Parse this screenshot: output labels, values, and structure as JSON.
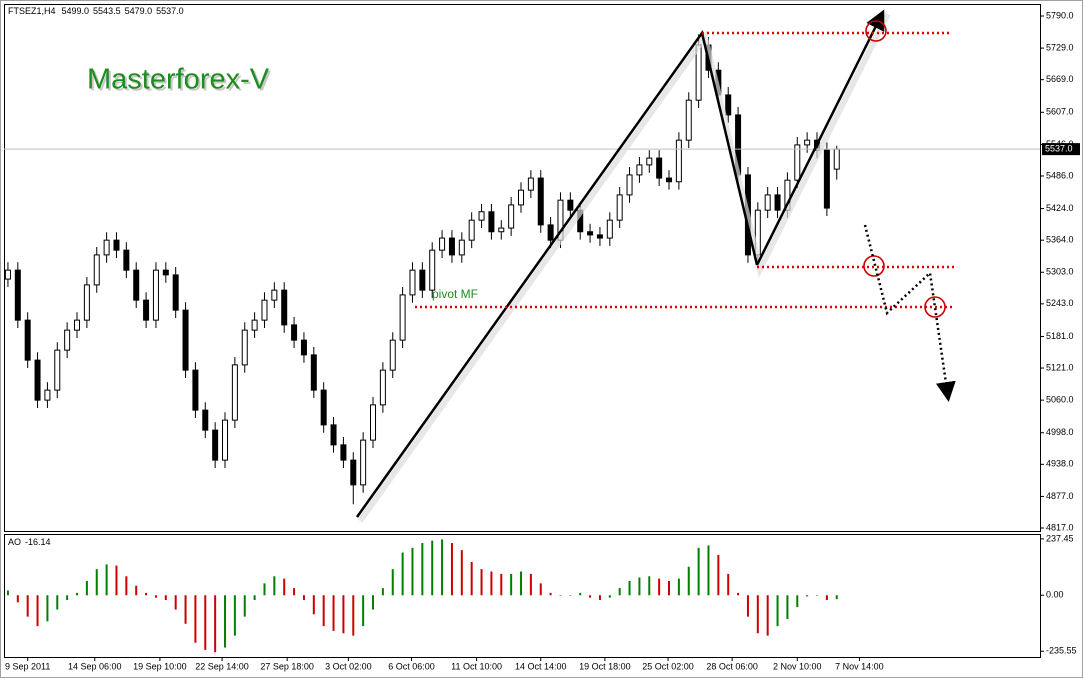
{
  "chart_data": [
    {
      "type": "candlestick",
      "symbol": "FTSEZ1,H4",
      "last_bar_header": [
        {
          "value": 5499,
          "label": "5499.0"
        },
        {
          "value": 5543.5,
          "label": "5543.5"
        },
        {
          "value": 5479,
          "label": "5479.0"
        },
        {
          "value": 5537,
          "label": "5537.0"
        }
      ],
      "watermark": "Masterforex-V",
      "annotation": "pivot MF",
      "last_price": {
        "value": 5537,
        "label": "5537.0"
      },
      "up_color": "#ffffff",
      "down_color": "#000000",
      "outline_color": "#000000",
      "open": [
        5290,
        5307,
        5212,
        5136,
        5060,
        5079,
        5155,
        5193,
        5212,
        5279,
        5336,
        5364,
        5345,
        5307,
        5250,
        5212,
        5307,
        5298,
        5231,
        5117,
        5041,
        5003,
        4946,
        5022,
        5127,
        5193,
        5212,
        5250,
        5269,
        5203,
        5174,
        5146,
        5079,
        5013,
        4975,
        4946,
        4899,
        4984,
        5051,
        5117,
        5174,
        5260,
        5307,
        5269,
        5345,
        5368,
        5336,
        5364,
        5402,
        5418,
        5380,
        5387,
        5431,
        5459,
        5482,
        5393,
        5364,
        5440,
        5421,
        5380,
        5374,
        5368,
        5402,
        5450,
        5488,
        5507,
        5520,
        5482,
        5475,
        5554,
        5630,
        5735,
        5687,
        5640,
        5602,
        5488,
        5336,
        5421,
        5450,
        5421,
        5478,
        5545,
        5554,
        5535,
        5499
      ],
      "high": [
        5322,
        5322,
        5227,
        5151,
        5094,
        5170,
        5208,
        5227,
        5294,
        5351,
        5379,
        5379,
        5360,
        5322,
        5265,
        5322,
        5322,
        5313,
        5246,
        5132,
        5056,
        5018,
        5037,
        5142,
        5208,
        5227,
        5265,
        5284,
        5284,
        5218,
        5189,
        5161,
        5094,
        5028,
        4990,
        4961,
        4999,
        5066,
        5132,
        5189,
        5275,
        5322,
        5322,
        5360,
        5383,
        5383,
        5379,
        5417,
        5433,
        5433,
        5402,
        5446,
        5474,
        5497,
        5497,
        5408,
        5455,
        5455,
        5436,
        5395,
        5389,
        5417,
        5465,
        5503,
        5522,
        5535,
        5535,
        5497,
        5569,
        5645,
        5755,
        5750,
        5702,
        5655,
        5617,
        5503,
        5436,
        5465,
        5465,
        5493,
        5560,
        5569,
        5569,
        5550,
        5543.5
      ],
      "low": [
        5275,
        5197,
        5121,
        5045,
        5045,
        5064,
        5140,
        5178,
        5197,
        5264,
        5321,
        5330,
        5292,
        5235,
        5197,
        5197,
        5283,
        5216,
        5102,
        5026,
        4988,
        4931,
        4931,
        5007,
        5112,
        5178,
        5197,
        5235,
        5188,
        5159,
        5131,
        5064,
        4998,
        4960,
        4931,
        4862,
        4884,
        4969,
        5036,
        5102,
        5159,
        5245,
        5254,
        5254,
        5330,
        5321,
        5321,
        5349,
        5387,
        5365,
        5365,
        5372,
        5416,
        5444,
        5378,
        5349,
        5349,
        5406,
        5365,
        5359,
        5353,
        5353,
        5387,
        5435,
        5473,
        5492,
        5467,
        5460,
        5460,
        5539,
        5615,
        5672,
        5625,
        5587,
        5473,
        5321,
        5321,
        5406,
        5406,
        5406,
        5463,
        5530,
        5520,
        5410,
        5479
      ],
      "close": [
        5307,
        5212,
        5136,
        5060,
        5079,
        5155,
        5193,
        5212,
        5279,
        5336,
        5364,
        5345,
        5307,
        5250,
        5212,
        5307,
        5298,
        5231,
        5117,
        5041,
        5003,
        4946,
        5022,
        5127,
        5193,
        5212,
        5250,
        5269,
        5203,
        5174,
        5146,
        5079,
        5013,
        4975,
        4946,
        4899,
        4984,
        5051,
        5117,
        5174,
        5260,
        5307,
        5269,
        5345,
        5368,
        5336,
        5364,
        5402,
        5418,
        5380,
        5387,
        5431,
        5459,
        5482,
        5393,
        5364,
        5440,
        5421,
        5380,
        5374,
        5368,
        5402,
        5450,
        5488,
        5507,
        5520,
        5482,
        5475,
        5554,
        5630,
        5735,
        5687,
        5640,
        5602,
        5488,
        5336,
        5421,
        5450,
        5421,
        5478,
        5545,
        5554,
        5535,
        5425,
        5537
      ],
      "xlim": [
        -0.4,
        104.6
      ],
      "xticks": [
        {
          "value": 2.0,
          "label": "9 Sep 2011"
        },
        {
          "value": 8.8,
          "label": "14 Sep 06:00"
        },
        {
          "value": 15.4,
          "label": "19 Sep 10:00"
        },
        {
          "value": 21.7,
          "label": "22 Sep 14:00"
        },
        {
          "value": 28.3,
          "label": "27 Sep 18:00"
        },
        {
          "value": 34.5,
          "label": "3 Oct 02:00"
        },
        {
          "value": 40.9,
          "label": "6 Oct 06:00"
        },
        {
          "value": 47.5,
          "label": "11 Oct 10:00"
        },
        {
          "value": 54.0,
          "label": "14 Oct 14:00"
        },
        {
          "value": 60.5,
          "label": "19 Oct 18:00"
        },
        {
          "value": 66.9,
          "label": "25 Oct 02:00"
        },
        {
          "value": 73.4,
          "label": "28 Oct 06:00"
        },
        {
          "value": 80.0,
          "label": "2 Nov 10:00"
        },
        {
          "value": 86.3,
          "label": "7 Nov 14:00"
        }
      ],
      "ylim": [
        4811.3,
        5812.8
      ],
      "yticks": [
        {
          "value": 5790,
          "label": "5790.0"
        },
        {
          "value": 5729,
          "label": "5729.0"
        },
        {
          "value": 5669,
          "label": "5669.0"
        },
        {
          "value": 5607,
          "label": "5607.0"
        },
        {
          "value": 5546,
          "label": "5546.0"
        },
        {
          "value": 5486,
          "label": "5486.0"
        },
        {
          "value": 5424,
          "label": "5424.0"
        },
        {
          "value": 5364,
          "label": "5364.0"
        },
        {
          "value": 5303,
          "label": "5303.0"
        },
        {
          "value": 5243,
          "label": "5243.0"
        },
        {
          "value": 5181,
          "label": "5181.0"
        },
        {
          "value": 5121,
          "label": "5121.0"
        },
        {
          "value": 5060,
          "label": "5060.0"
        },
        {
          "value": 4998,
          "label": "4998.0"
        },
        {
          "value": 4938,
          "label": "4938.0"
        },
        {
          "value": 4877,
          "label": "4877.0"
        },
        {
          "value": 4817,
          "label": "4817.0"
        }
      ],
      "grid": false
    },
    {
      "type": "histogram",
      "name": "AO",
      "current_value": -16.14,
      "up_color": "#008000",
      "down_color": "#cc0000",
      "values": [
        20,
        -30,
        -90,
        -130,
        -110,
        -60,
        -20,
        10,
        60,
        110,
        130,
        125,
        80,
        40,
        10,
        -10,
        -20,
        -60,
        -120,
        -200,
        -230,
        -240,
        -220,
        -170,
        -90,
        -20,
        50,
        80,
        70,
        30,
        -20,
        -80,
        -130,
        -150,
        -160,
        -170,
        -130,
        -60,
        30,
        110,
        180,
        200,
        220,
        230,
        235,
        220,
        190,
        140,
        110,
        100,
        90,
        90,
        100,
        90,
        50,
        10,
        0,
        0,
        10,
        -10,
        -20,
        -10,
        30,
        60,
        75,
        80,
        70,
        60,
        70,
        120,
        200,
        210,
        170,
        90,
        10,
        -90,
        -160,
        -170,
        -130,
        -100,
        -50,
        -5,
        0,
        -20,
        -16.14
      ],
      "xlim": [
        -0.4,
        104.6
      ],
      "ylim": [
        -260,
        258
      ],
      "yticks": [
        237.45,
        {
          "value": 0,
          "label": "0.00"
        },
        -235.55
      ],
      "grid": false
    }
  ]
}
